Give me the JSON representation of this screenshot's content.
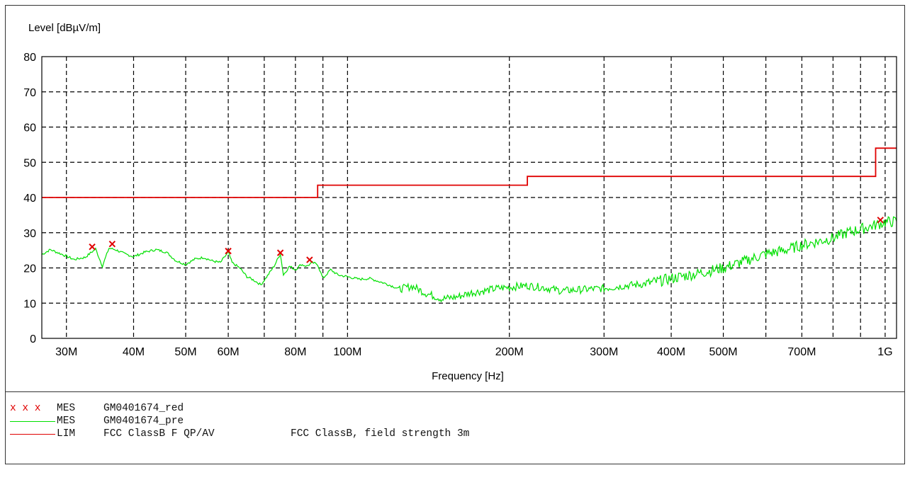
{
  "chart_data": {
    "type": "line",
    "title": "",
    "ylabel": "Level [dBµV/m]",
    "xlabel": "Frequency [Hz]",
    "x_scale": "log",
    "xlim": [
      27000000,
      1050000000
    ],
    "ylim": [
      0,
      80
    ],
    "grid": true,
    "y_ticks": [
      0,
      10,
      20,
      30,
      40,
      50,
      60,
      70,
      80
    ],
    "x_ticks": [
      {
        "value": 30000000,
        "label": "30M"
      },
      {
        "value": 40000000,
        "label": "40M"
      },
      {
        "value": 50000000,
        "label": "50M"
      },
      {
        "value": 60000000,
        "label": "60M"
      },
      {
        "value": 70000000,
        "label": ""
      },
      {
        "value": 80000000,
        "label": "80M"
      },
      {
        "value": 90000000,
        "label": ""
      },
      {
        "value": 100000000,
        "label": "100M"
      },
      {
        "value": 200000000,
        "label": "200M"
      },
      {
        "value": 300000000,
        "label": "300M"
      },
      {
        "value": 400000000,
        "label": "400M"
      },
      {
        "value": 500000000,
        "label": "500M"
      },
      {
        "value": 600000000,
        "label": ""
      },
      {
        "value": 700000000,
        "label": "700M"
      },
      {
        "value": 800000000,
        "label": ""
      },
      {
        "value": 900000000,
        "label": ""
      },
      {
        "value": 1000000000,
        "label": "1G"
      }
    ],
    "series": [
      {
        "name": "GM0401674_red",
        "kind": "markers",
        "color": "#e00000",
        "points": [
          [
            33500000,
            26.0
          ],
          [
            36500000,
            26.8
          ],
          [
            60000000,
            24.8
          ],
          [
            75000000,
            24.3
          ],
          [
            85000000,
            22.3
          ],
          [
            980000000,
            33.6
          ]
        ]
      },
      {
        "name": "GM0401674_pre",
        "kind": "line",
        "color": "#00e000",
        "points": [
          [
            27000000,
            23.8
          ],
          [
            28000000,
            25.2
          ],
          [
            29500000,
            23.8
          ],
          [
            31000000,
            22.4
          ],
          [
            32500000,
            23.0
          ],
          [
            34000000,
            25.4
          ],
          [
            35000000,
            20.5
          ],
          [
            36000000,
            25.6
          ],
          [
            37000000,
            25.2
          ],
          [
            38500000,
            24.0
          ],
          [
            40000000,
            23.2
          ],
          [
            42000000,
            24.5
          ],
          [
            44000000,
            25.2
          ],
          [
            46000000,
            24.5
          ],
          [
            48000000,
            22.0
          ],
          [
            50000000,
            21.0
          ],
          [
            52000000,
            22.5
          ],
          [
            54000000,
            23.0
          ],
          [
            56000000,
            22.0
          ],
          [
            58000000,
            21.5
          ],
          [
            60000000,
            24.5
          ],
          [
            61000000,
            21.5
          ],
          [
            63000000,
            20.0
          ],
          [
            65000000,
            17.5
          ],
          [
            67000000,
            16.5
          ],
          [
            69000000,
            15.2
          ],
          [
            71000000,
            17.8
          ],
          [
            73000000,
            20.5
          ],
          [
            75000000,
            24.0
          ],
          [
            76000000,
            18.0
          ],
          [
            78000000,
            20.5
          ],
          [
            80000000,
            19.5
          ],
          [
            82000000,
            21.0
          ],
          [
            84000000,
            20.5
          ],
          [
            86000000,
            21.5
          ],
          [
            88000000,
            21.0
          ],
          [
            90000000,
            17.0
          ],
          [
            93000000,
            19.5
          ],
          [
            96000000,
            18.0
          ],
          [
            100000000,
            17.5
          ],
          [
            105000000,
            16.8
          ],
          [
            110000000,
            17.0
          ],
          [
            118000000,
            15.5
          ],
          [
            125000000,
            14.0
          ],
          [
            132000000,
            14.8
          ],
          [
            140000000,
            12.8
          ],
          [
            150000000,
            11.2
          ],
          [
            160000000,
            11.8
          ],
          [
            170000000,
            13.0
          ],
          [
            180000000,
            13.5
          ],
          [
            190000000,
            14.2
          ],
          [
            200000000,
            14.5
          ],
          [
            215000000,
            15.0
          ],
          [
            230000000,
            14.5
          ],
          [
            250000000,
            13.5
          ],
          [
            270000000,
            13.8
          ],
          [
            300000000,
            14.2
          ],
          [
            330000000,
            15.0
          ],
          [
            360000000,
            15.5
          ],
          [
            400000000,
            17.0
          ],
          [
            450000000,
            18.5
          ],
          [
            500000000,
            20.0
          ],
          [
            550000000,
            22.0
          ],
          [
            600000000,
            24.0
          ],
          [
            650000000,
            25.0
          ],
          [
            700000000,
            26.5
          ],
          [
            750000000,
            27.5
          ],
          [
            800000000,
            28.5
          ],
          [
            850000000,
            30.0
          ],
          [
            900000000,
            31.0
          ],
          [
            950000000,
            32.0
          ],
          [
            1000000000,
            33.0
          ],
          [
            1050000000,
            33.2
          ]
        ]
      },
      {
        "name": "FCC ClassB F QP/AV",
        "kind": "step",
        "color": "#e00000",
        "points": [
          [
            27000000,
            40.0
          ],
          [
            88000000,
            40.0
          ],
          [
            88000000,
            43.5
          ],
          [
            216000000,
            43.5
          ],
          [
            216000000,
            46.0
          ],
          [
            960000000,
            46.0
          ],
          [
            960000000,
            54.0
          ],
          [
            1050000000,
            54.0
          ]
        ]
      }
    ]
  },
  "legend": [
    {
      "symbol": "x x x",
      "type": "MES",
      "name": "GM0401674_red",
      "desc": "",
      "color": "#e00000",
      "style": "markers"
    },
    {
      "symbol": "",
      "type": "MES",
      "name": "GM0401674_pre",
      "desc": "",
      "color": "#00e000",
      "style": "line"
    },
    {
      "symbol": "",
      "type": "LIM",
      "name": "FCC ClassB F QP/AV",
      "desc": "FCC ClassB, field strength 3m",
      "color": "#e00000",
      "style": "line"
    }
  ]
}
